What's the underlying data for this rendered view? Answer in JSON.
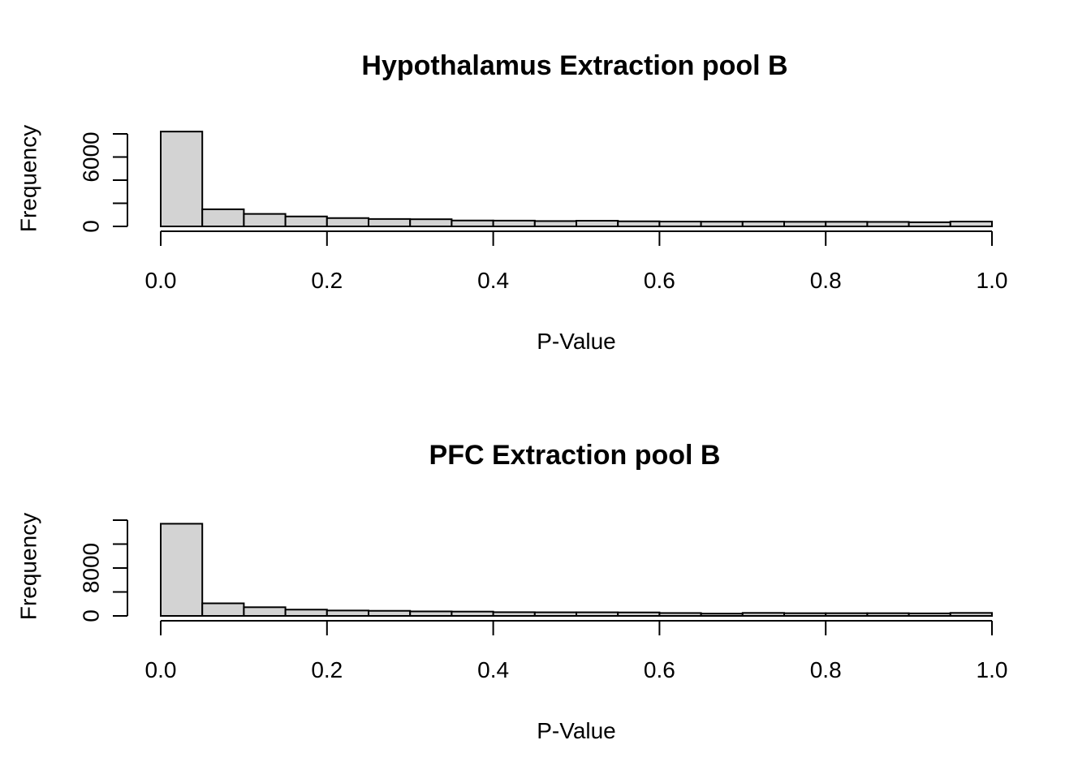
{
  "chart_data": [
    {
      "type": "bar",
      "title": "Hypothalamus Extraction pool B",
      "xlabel": "P-Value",
      "ylabel": "Frequency",
      "x_ticks": [
        "0.0",
        "0.2",
        "0.4",
        "0.6",
        "0.8",
        "1.0"
      ],
      "x_tick_values": [
        0.0,
        0.2,
        0.4,
        0.6,
        0.8,
        1.0
      ],
      "y_ticks": [
        "0",
        "6000"
      ],
      "y_tick_values": [
        0,
        6000
      ],
      "y_minor_ticks": [
        2000,
        4000,
        8000
      ],
      "xlim": [
        0,
        1
      ],
      "ylim": [
        0,
        8000
      ],
      "bin_edges": [
        0.0,
        0.05,
        0.1,
        0.15,
        0.2,
        0.25,
        0.3,
        0.35,
        0.4,
        0.45,
        0.5,
        0.55,
        0.6,
        0.65,
        0.7,
        0.75,
        0.8,
        0.85,
        0.9,
        0.95,
        1.0
      ],
      "values": [
        8200,
        1480,
        1080,
        860,
        720,
        640,
        620,
        510,
        500,
        460,
        490,
        440,
        420,
        410,
        410,
        400,
        400,
        390,
        360,
        420
      ]
    },
    {
      "type": "bar",
      "title": "PFC Extraction pool B",
      "xlabel": "P-Value",
      "ylabel": "Frequency",
      "x_ticks": [
        "0.0",
        "0.2",
        "0.4",
        "0.6",
        "0.8",
        "1.0"
      ],
      "x_tick_values": [
        0.0,
        0.2,
        0.4,
        0.6,
        0.8,
        1.0
      ],
      "y_ticks": [
        "0",
        "8000"
      ],
      "y_tick_values": [
        0,
        8000
      ],
      "y_minor_ticks": [
        4000,
        12000,
        16000
      ],
      "xlim": [
        0,
        1
      ],
      "ylim": [
        0,
        16000
      ],
      "bin_edges": [
        0.0,
        0.05,
        0.1,
        0.15,
        0.2,
        0.25,
        0.3,
        0.35,
        0.4,
        0.45,
        0.5,
        0.55,
        0.6,
        0.65,
        0.7,
        0.75,
        0.8,
        0.85,
        0.9,
        0.95,
        1.0
      ],
      "values": [
        15400,
        2100,
        1450,
        1050,
        900,
        850,
        750,
        720,
        620,
        600,
        600,
        580,
        480,
        380,
        500,
        450,
        450,
        450,
        420,
        500
      ]
    }
  ]
}
